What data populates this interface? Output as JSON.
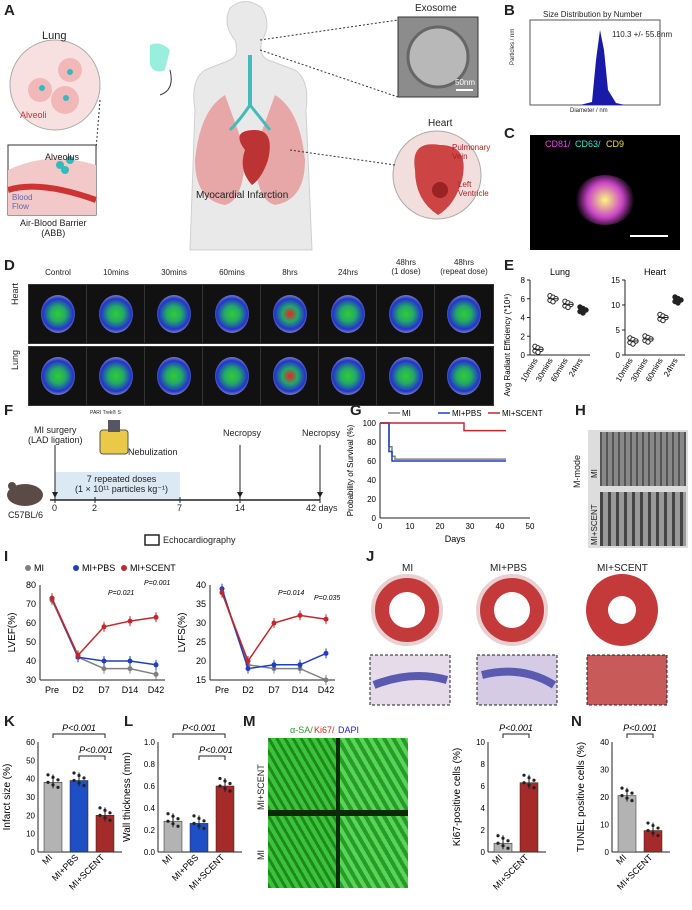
{
  "panel_letters": {
    "A": "A",
    "B": "B",
    "C": "C",
    "D": "D",
    "E": "E",
    "F": "F",
    "G": "G",
    "H": "H",
    "I": "I",
    "J": "J",
    "K": "K",
    "L": "L",
    "M": "M",
    "N": "N"
  },
  "panelA": {
    "lung": "Lung",
    "alveoli": "Alveoli",
    "alveolus": "Alveolus",
    "blood_flow": "Blood\nFlow",
    "abb": "Air-Blood Barrier\n(ABB)",
    "exosome": "Exosome",
    "scale": "50nm",
    "mi": "Myocardial Infarction",
    "heart": "Heart",
    "pv": "Pulmonary\nVein",
    "lv": "Left\nVentricle"
  },
  "panelB": {
    "title": "Size Distribution by Number",
    "annotation": "110.3 +/- 55.8nm",
    "xlabel": "Diameter / nm",
    "ylabel": "Particles / nm"
  },
  "panelC": {
    "cd81": "CD81/",
    "cd63": "CD63/",
    "cd9": "CD9"
  },
  "panelD": {
    "timepoints": [
      "Control",
      "10mins",
      "30mins",
      "60mins",
      "8hrs",
      "24hrs",
      "48hrs\n(1 dose)",
      "48hrs\n(repeat dose)"
    ],
    "rows": [
      "Heart",
      "Lung"
    ]
  },
  "panelE": {
    "ylabel": "Avg Radiant Efficiency (*10⁸)",
    "lung": {
      "title": "Lung",
      "categories": [
        "10mins",
        "30mins",
        "60mins",
        "24hrs"
      ],
      "yticks": [
        "0",
        "2",
        "4",
        "6",
        "8"
      ]
    },
    "heart": {
      "title": "Heart",
      "categories": [
        "10mins",
        "30mins",
        "60mins",
        "24hrs"
      ],
      "yticks": [
        "0",
        "5",
        "10",
        "15"
      ]
    }
  },
  "panelF": {
    "surgery": "MI surgery\n(LAD ligation)",
    "device": "PARI Trek® S",
    "nebulization": "Nebulization",
    "necropsy1": "Necropsy",
    "necropsy2": "Necropsy",
    "doses": "7 repeated doses\n(1 × 10¹¹ particles kg⁻¹)",
    "ticks": [
      "0",
      "2",
      "7",
      "14",
      "42 days"
    ],
    "mouse": "C57BL/6",
    "echo": "Echocardiography"
  },
  "panelG": {
    "ylabel": "Probability of Survival (%)",
    "xlabel": "Days",
    "legend": [
      "MI",
      "MI+PBS",
      "MI+SCENT"
    ],
    "xticks": [
      "0",
      "10",
      "20",
      "30",
      "40",
      "50"
    ],
    "yticks": [
      "0",
      "20",
      "40",
      "60",
      "80",
      "100"
    ]
  },
  "panelH": {
    "mode": "M-mode",
    "rows": [
      "MI",
      "MI+SCENT"
    ]
  },
  "panelI": {
    "legend": [
      "MI",
      "MI+PBS",
      "MI+SCENT"
    ],
    "lvef": {
      "ylabel": "LVEF(%)",
      "yticks": [
        "30",
        "40",
        "50",
        "60",
        "70",
        "80"
      ],
      "p1": "P=0.021",
      "p2": "P=0.001"
    },
    "lvfs": {
      "ylabel": "LVFS(%)",
      "yticks": [
        "15",
        "20",
        "25",
        "30",
        "35",
        "40"
      ],
      "p1": "P=0.014",
      "p2": "P=0.035"
    },
    "categories": [
      "Pre",
      "D2",
      "D7",
      "D14",
      "D42"
    ]
  },
  "panelJ": {
    "groups": [
      "MI",
      "MI+PBS",
      "MI+SCENT"
    ]
  },
  "panelK": {
    "ylabel": "Infarct size (%)",
    "p1": "P<0.001",
    "p2": "P<0.001",
    "categories": [
      "MI",
      "MI+PBS",
      "MI+SCENT"
    ],
    "yticks": [
      "0",
      "10",
      "20",
      "30",
      "40",
      "50",
      "60"
    ]
  },
  "panelL": {
    "ylabel": "Wall thickness (mm)",
    "p1": "P<0.001",
    "p2": "P<0.001",
    "categories": [
      "MI",
      "MI+PBS",
      "MI+SCENT"
    ],
    "yticks": [
      "0.0",
      "0.2",
      "0.4",
      "0.6",
      "0.8",
      "1.0"
    ]
  },
  "panelM": {
    "stain1": "α-SA/",
    "stain2": "Ki67/",
    "stain3": "DAPI",
    "rows": [
      "MI+SCENT",
      "MI"
    ],
    "ylabel": "Ki67-positive cells (%)",
    "p": "P<0.001",
    "categories": [
      "MI",
      "MI+SCENT"
    ],
    "yticks": [
      "0",
      "2",
      "4",
      "6",
      "8",
      "10"
    ]
  },
  "panelN": {
    "ylabel": "TUNEL positive cells (%)",
    "p": "P<0.001",
    "categories": [
      "MI",
      "MI+SCENT"
    ],
    "yticks": [
      "0",
      "10",
      "20",
      "30",
      "40"
    ]
  },
  "colors": {
    "mi": "#808080",
    "pbs": "#1f3fbf",
    "scent": "#c0282b",
    "bar_mi": "#b3b3b3",
    "bar_pbs": "#1f4fc4",
    "bar_scent": "#a52a2a"
  },
  "chart_data": [
    {
      "type": "scatter",
      "title": "Lung",
      "categories": [
        "10mins",
        "30mins",
        "60mins",
        "24hrs"
      ],
      "series": [
        {
          "values": [
            0.6,
            6.0,
            5.4,
            4.8
          ]
        }
      ],
      "ylim": [
        0,
        8
      ]
    },
    {
      "type": "scatter",
      "title": "Heart",
      "categories": [
        "10mins",
        "30mins",
        "60mins",
        "24hrs"
      ],
      "series": [
        {
          "values": [
            2.8,
            3.2,
            7.5,
            11.0
          ]
        }
      ],
      "ylim": [
        0,
        15
      ]
    },
    {
      "type": "line",
      "xlabel": "Days",
      "ylabel": "Probability of Survival (%)",
      "x": [
        0,
        3,
        4,
        5,
        28,
        42
      ],
      "series": [
        {
          "name": "MI",
          "values": [
            100,
            75,
            65,
            62,
            62,
            62
          ]
        },
        {
          "name": "MI+PBS",
          "values": [
            100,
            70,
            60,
            60,
            60,
            60
          ]
        },
        {
          "name": "MI+SCENT",
          "values": [
            100,
            100,
            100,
            100,
            92,
            92
          ]
        }
      ],
      "ylim": [
        0,
        100
      ],
      "xlim": [
        0,
        50
      ]
    },
    {
      "type": "line",
      "ylabel": "LVEF(%)",
      "categories": [
        "Pre",
        "D2",
        "D7",
        "D14",
        "D42"
      ],
      "series": [
        {
          "name": "MI",
          "values": [
            72,
            42,
            36,
            36,
            33
          ]
        },
        {
          "name": "MI+PBS",
          "values": [
            73,
            42,
            40,
            40,
            38
          ]
        },
        {
          "name": "MI+SCENT",
          "values": [
            73,
            43,
            58,
            61,
            63
          ]
        }
      ],
      "ylim": [
        25,
        80
      ]
    },
    {
      "type": "line",
      "ylabel": "LVFS(%)",
      "categories": [
        "Pre",
        "D2",
        "D7",
        "D14",
        "D42"
      ],
      "series": [
        {
          "name": "MI",
          "values": [
            38,
            19,
            18,
            18,
            15
          ]
        },
        {
          "name": "MI+PBS",
          "values": [
            39,
            18,
            19,
            19,
            22
          ]
        },
        {
          "name": "MI+SCENT",
          "values": [
            38,
            20,
            30,
            32,
            31
          ]
        }
      ],
      "ylim": [
        10,
        40
      ]
    },
    {
      "type": "bar",
      "ylabel": "Infarct size (%)",
      "categories": [
        "MI",
        "MI+PBS",
        "MI+SCENT"
      ],
      "values": [
        38,
        39,
        20
      ],
      "ylim": [
        0,
        60
      ]
    },
    {
      "type": "bar",
      "ylabel": "Wall thickness (mm)",
      "categories": [
        "MI",
        "MI+PBS",
        "MI+SCENT"
      ],
      "values": [
        0.28,
        0.26,
        0.6
      ],
      "ylim": [
        0,
        1.0
      ]
    },
    {
      "type": "bar",
      "ylabel": "Ki67-positive cells (%)",
      "categories": [
        "MI",
        "MI+SCENT"
      ],
      "values": [
        0.8,
        6.3
      ],
      "ylim": [
        0,
        10
      ]
    },
    {
      "type": "bar",
      "ylabel": "TUNEL positive cells (%)",
      "categories": [
        "MI",
        "MI+SCENT"
      ],
      "values": [
        20.5,
        7.8
      ],
      "ylim": [
        0,
        40
      ]
    }
  ]
}
